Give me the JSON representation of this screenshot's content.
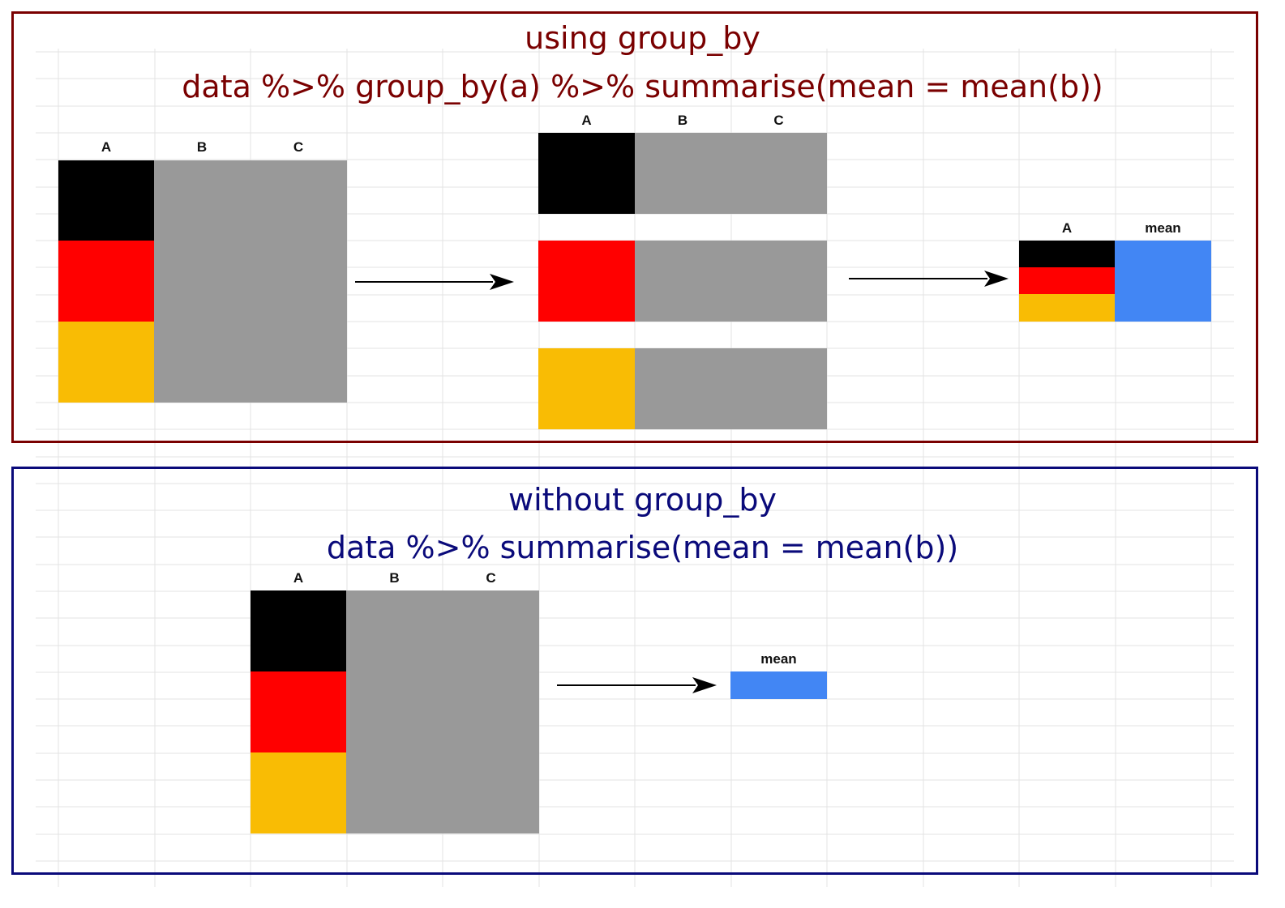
{
  "colors": {
    "grid": "#e3e3e3",
    "top_border": "#7a0000",
    "bottom_border": "#0a0a7a",
    "black": "#000000",
    "red": "#ff0000",
    "gold": "#f9bc04",
    "gray": "#999999",
    "blue": "#4286f4"
  },
  "top_panel": {
    "title": "using group_by",
    "code": "data %>% group_by(a) %>% summarise(mean = mean(b))",
    "input_headers": [
      "A",
      "B",
      "C"
    ],
    "grouped_headers": [
      "A",
      "B",
      "C"
    ],
    "result_headers": [
      "A",
      "mean"
    ]
  },
  "bottom_panel": {
    "title": "without group_by",
    "code": "data %>% summarise(mean = mean(b))",
    "input_headers": [
      "A",
      "B",
      "C"
    ],
    "result_headers": [
      "mean"
    ]
  }
}
